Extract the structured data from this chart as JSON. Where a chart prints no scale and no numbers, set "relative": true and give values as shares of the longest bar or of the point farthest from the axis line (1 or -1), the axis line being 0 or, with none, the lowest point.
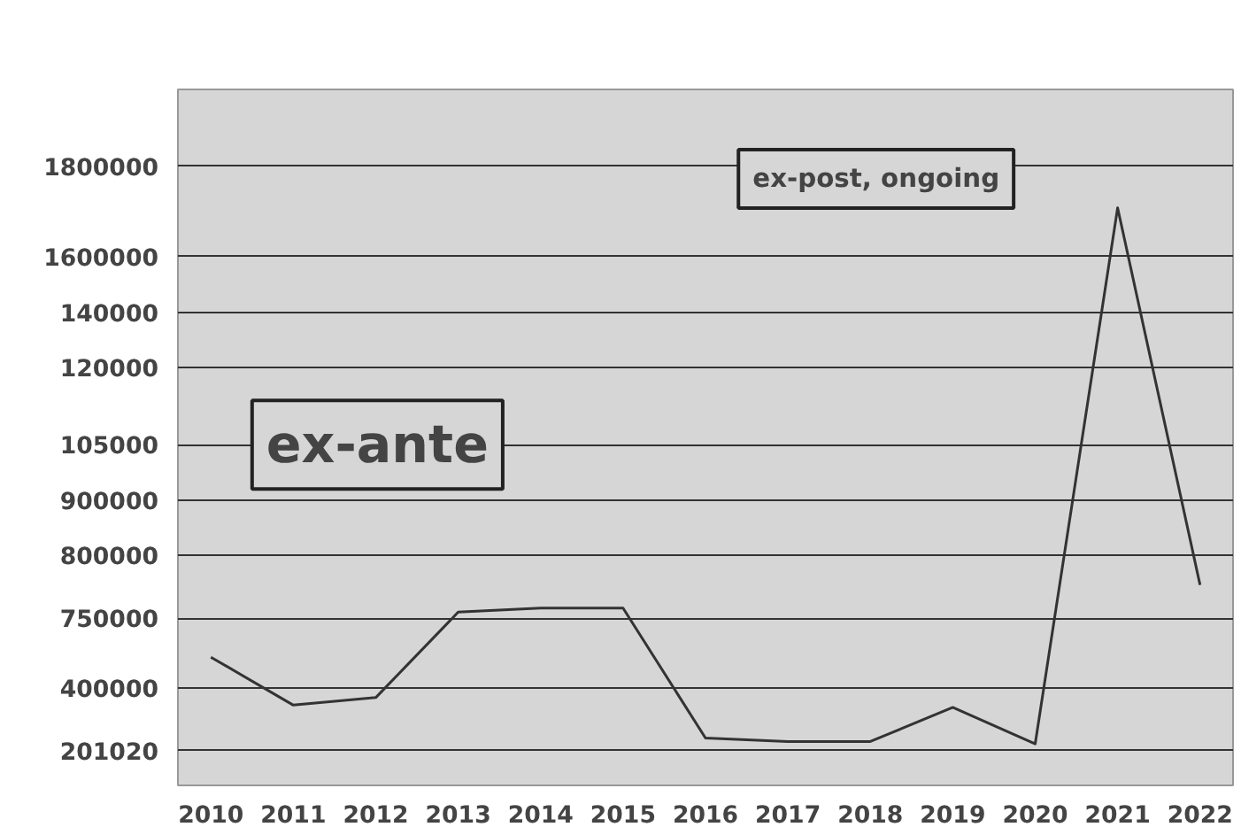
{
  "chart_data": {
    "type": "line",
    "categories": [
      "2010",
      "2011",
      "2012",
      "2013",
      "2014",
      "2015",
      "2016",
      "2017",
      "2018",
      "2019",
      "2020",
      "2021",
      "2022"
    ],
    "series": [
      {
        "color": "#333333",
        "values": [
          0.222,
          0.139,
          0.152,
          0.3,
          0.307,
          0.307,
          0.082,
          0.076,
          0.076,
          0.135,
          0.072,
          1,
          0.347
        ]
      }
    ],
    "relative": true,
    "annotations": [
      "ex-ante",
      "ex-post, ongoing",
      "1800000",
      "1600000",
      "140000",
      "120000",
      "105000",
      "900000",
      "800000",
      "750000",
      "400000",
      "201020"
    ],
    "grid": "y",
    "line_style": "solid"
  }
}
